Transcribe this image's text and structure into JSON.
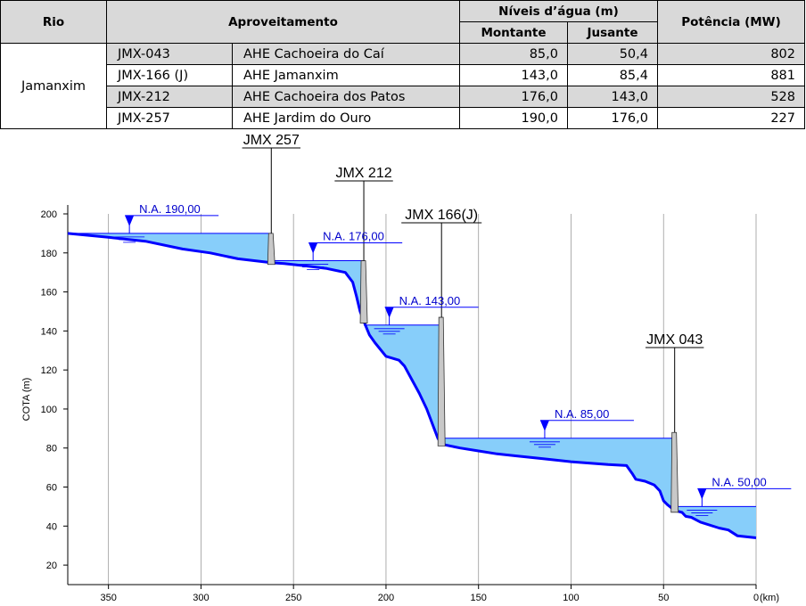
{
  "table": {
    "headers": {
      "rio": "Rio",
      "aproveitamento": "Aproveitamento",
      "niveis": "Níveis d’água (m)",
      "montante": "Montante",
      "jusante": "Jusante",
      "potencia": "Potência (MW)"
    },
    "rio": "Jamanxim",
    "rows": [
      {
        "code": "JMX-043",
        "name": "AHE Cachoeira do Caí",
        "montante": "85,0",
        "jusante": "50,4",
        "potencia": "802"
      },
      {
        "code": "JMX-166 (J)",
        "name": "AHE Jamanxim",
        "montante": "143,0",
        "jusante": "85,4",
        "potencia": "881"
      },
      {
        "code": "JMX-212",
        "name": "AHE Cachoeira dos Patos",
        "montante": "176,0",
        "jusante": "143,0",
        "potencia": "528"
      },
      {
        "code": "JMX-257",
        "name": "AHE Jardim do Ouro",
        "montante": "190,0",
        "jusante": "176,0",
        "potencia": "227"
      }
    ]
  },
  "chart_data": {
    "type": "area",
    "ylabel": "COTA (m)",
    "x_unit_label": "(km)",
    "xlim": [
      372,
      0
    ],
    "ylim": [
      10,
      200
    ],
    "x_ticks": [
      350,
      300,
      250,
      200,
      150,
      100,
      50,
      0
    ],
    "y_ticks": [
      20,
      40,
      60,
      80,
      100,
      120,
      140,
      160,
      180,
      200
    ],
    "grid": "vertical",
    "colors": {
      "riverbed": "#0000ff",
      "reservoir": "#87cefa",
      "dam": "#c8c8c8",
      "na_text": "#0000cc"
    },
    "dams": [
      {
        "label": "JMX 257",
        "km": 262,
        "crest": 190
      },
      {
        "label": "JMX 212",
        "km": 212,
        "crest": 176
      },
      {
        "label": "JMX 166(J)",
        "km": 170,
        "crest": 147
      },
      {
        "label": "JMX 043",
        "km": 44,
        "crest": 88
      }
    ],
    "water_levels": [
      {
        "label": "N.A. 190,00",
        "value": 190,
        "from_km": 372,
        "to_km": 262
      },
      {
        "label": "N.A. 176,00",
        "value": 176,
        "from_km": 262,
        "to_km": 212
      },
      {
        "label": "N.A. 143,00",
        "value": 143,
        "from_km": 212,
        "to_km": 170
      },
      {
        "label": "N.A. 85,00",
        "value": 85,
        "from_km": 170,
        "to_km": 44
      },
      {
        "label": "N.A. 50,00",
        "value": 50,
        "from_km": 44,
        "to_km": 0
      }
    ],
    "riverbed": [
      [
        372,
        190
      ],
      [
        350,
        188
      ],
      [
        330,
        186
      ],
      [
        310,
        182
      ],
      [
        295,
        180
      ],
      [
        280,
        177
      ],
      [
        262,
        175
      ],
      [
        255,
        174.5
      ],
      [
        245,
        173.5
      ],
      [
        232,
        172
      ],
      [
        222,
        170
      ],
      [
        218,
        165
      ],
      [
        216,
        158
      ],
      [
        214,
        150
      ],
      [
        212,
        145
      ],
      [
        209,
        138
      ],
      [
        206,
        134
      ],
      [
        200,
        127
      ],
      [
        193,
        125
      ],
      [
        190,
        122
      ],
      [
        186,
        115
      ],
      [
        182,
        108
      ],
      [
        178,
        100
      ],
      [
        174,
        90
      ],
      [
        172,
        85
      ],
      [
        170,
        82
      ],
      [
        160,
        80
      ],
      [
        150,
        78.5
      ],
      [
        140,
        77
      ],
      [
        130,
        76
      ],
      [
        115,
        74.5
      ],
      [
        100,
        73
      ],
      [
        80,
        71.5
      ],
      [
        70,
        71
      ],
      [
        67,
        67
      ],
      [
        65,
        64
      ],
      [
        60,
        63
      ],
      [
        55,
        61
      ],
      [
        52,
        58
      ],
      [
        50,
        53
      ],
      [
        48,
        51
      ],
      [
        44,
        48
      ],
      [
        40,
        47
      ],
      [
        38,
        45
      ],
      [
        35,
        44.5
      ],
      [
        30,
        42
      ],
      [
        20,
        39
      ],
      [
        15,
        38
      ],
      [
        10,
        35
      ],
      [
        5,
        34.5
      ],
      [
        0,
        34
      ]
    ]
  }
}
